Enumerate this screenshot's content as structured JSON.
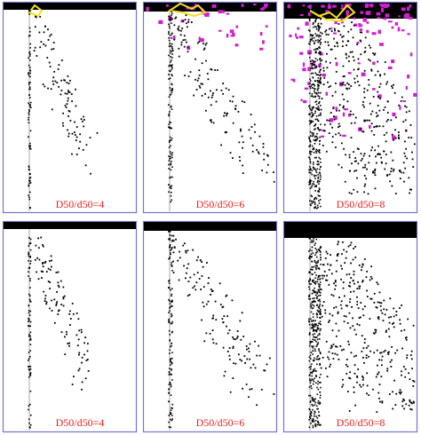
{
  "panels": [
    {
      "label": "D50/d50=4"
    },
    {
      "label": "D50/d50=6"
    },
    {
      "label": "D50/d50=8"
    },
    {
      "label": "D50/d50=4"
    },
    {
      "label": "D50/d50=6"
    },
    {
      "label": "D50/d50=8"
    }
  ]
}
